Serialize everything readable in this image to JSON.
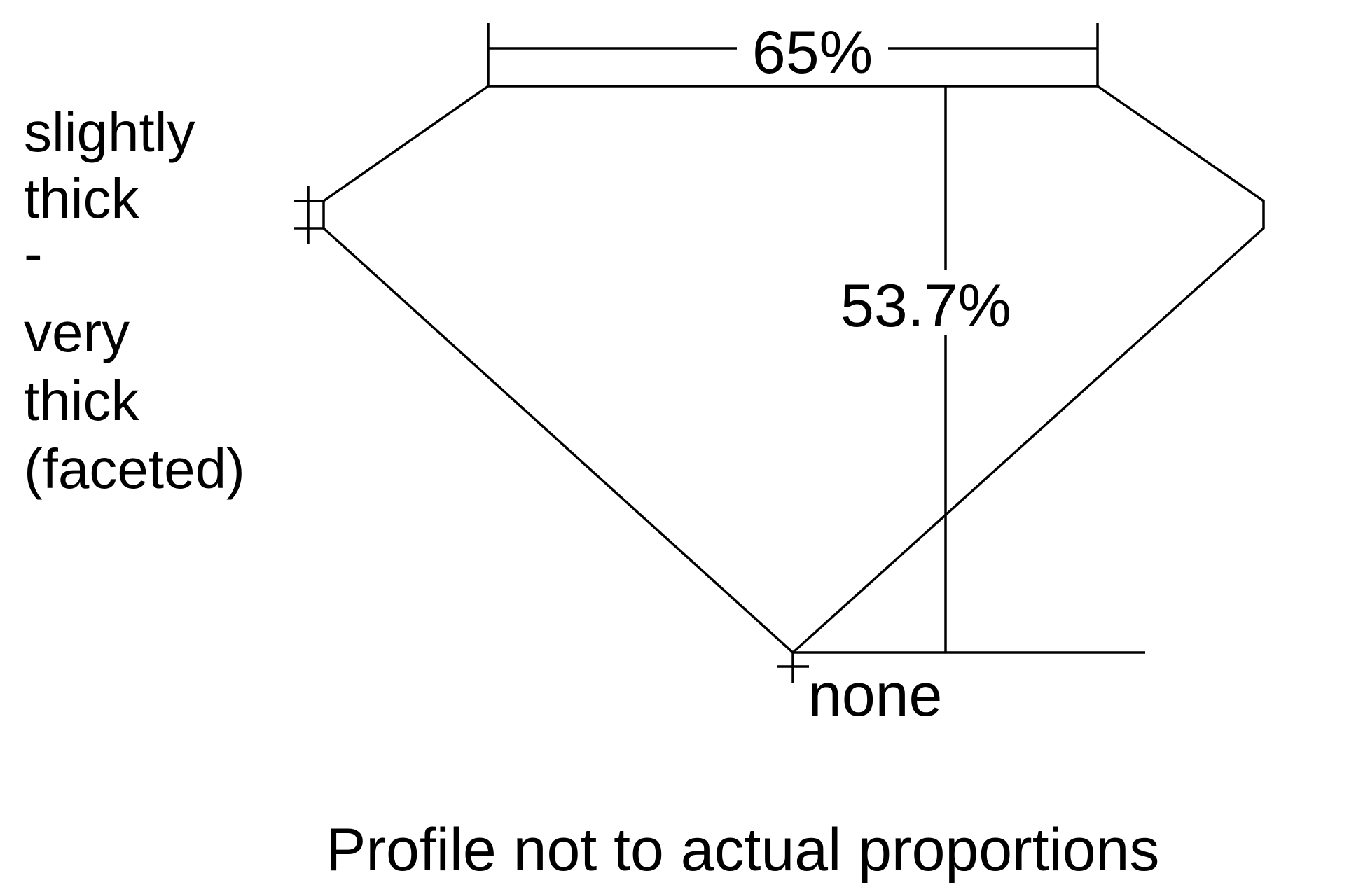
{
  "left_label": [
    "slightly",
    "thick",
    "-",
    "very",
    "thick",
    "(faceted)"
  ],
  "table_label": "65%",
  "depth_label": "53.7%",
  "culet_label": "none",
  "footer": "Profile not to actual proportions",
  "colors": {
    "line": "#000000",
    "background": "#ffffff"
  }
}
